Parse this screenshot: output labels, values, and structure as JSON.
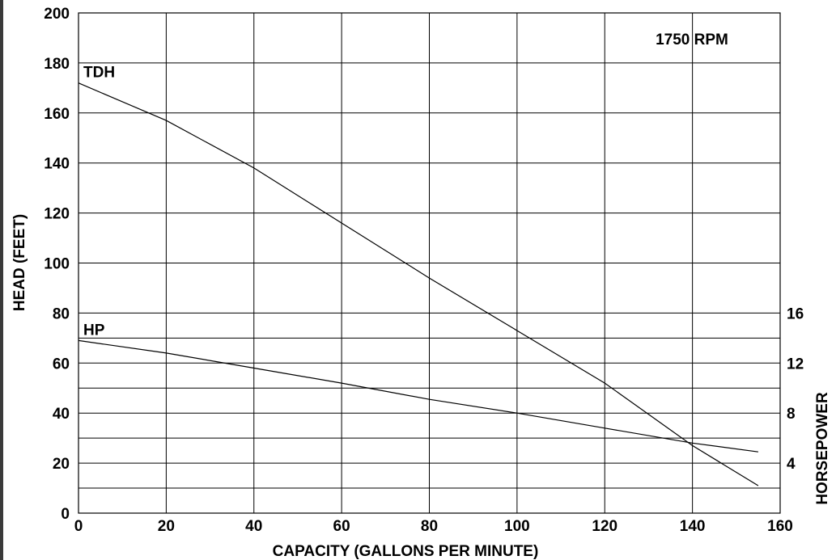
{
  "chart_data": {
    "type": "line",
    "title": "",
    "annotation": "1750 RPM",
    "xlabel": "CAPACITY (GALLONS PER MINUTE)",
    "ylabel": "HEAD (FEET)",
    "y2label": "HORSEPOWER",
    "xlim": [
      0,
      160
    ],
    "ylim": [
      0,
      200
    ],
    "y2lim": [
      0,
      40
    ],
    "grid": true,
    "x_ticks": [
      0,
      20,
      40,
      60,
      80,
      100,
      120,
      140,
      160
    ],
    "y_ticks": [
      0,
      20,
      40,
      60,
      80,
      100,
      120,
      140,
      160,
      180,
      200
    ],
    "y2_ticks": [
      4,
      8,
      12,
      16
    ],
    "series": [
      {
        "name": "TDH",
        "axis": "left",
        "x": [
          0,
          20,
          40,
          60,
          80,
          100,
          120,
          140,
          155
        ],
        "values": [
          172,
          157,
          138,
          116,
          94,
          73,
          52,
          27,
          11
        ]
      },
      {
        "name": "HP",
        "axis": "right",
        "x": [
          0,
          20,
          40,
          60,
          80,
          100,
          120,
          140,
          155
        ],
        "values": [
          13.8,
          12.8,
          11.6,
          10.4,
          9.1,
          8.0,
          6.8,
          5.6,
          4.9
        ]
      }
    ]
  }
}
